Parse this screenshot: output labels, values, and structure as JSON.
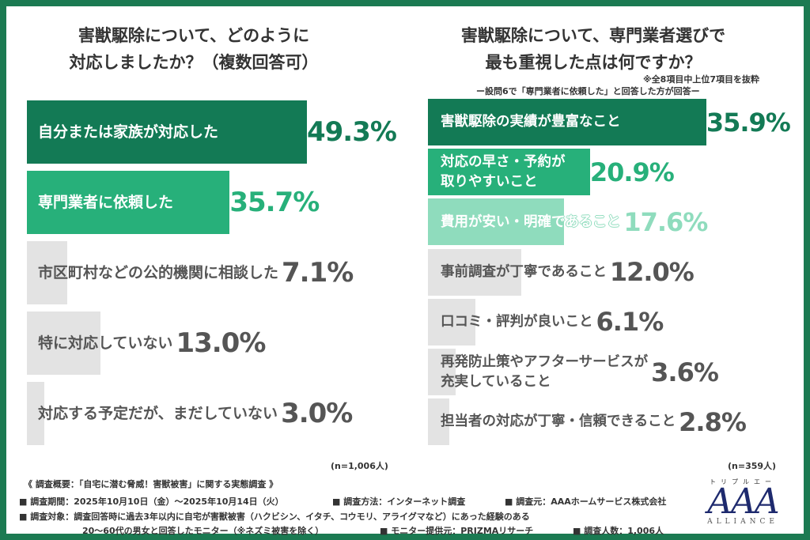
{
  "chart_data": [
    {
      "type": "bar",
      "orientation": "horizontal",
      "title": "害獣駆除について、どのように\n対応しましたか？（複数回答可）",
      "title_lines": [
        "害獣駆除について、どのように",
        "対応しましたか？（複数回答可）"
      ],
      "categories": [
        "自分または家族が対応した",
        "専門業者に依頼した",
        "市区町村などの公的機関に相談した",
        "特に対応していない",
        "対応する予定だが、まだしていない"
      ],
      "values": [
        49.3,
        35.7,
        7.1,
        13.0,
        3.0
      ],
      "value_labels": [
        "49.3%",
        "35.7%",
        "7.1%",
        "13.0%",
        "3.0%"
      ],
      "colors": [
        "#137a55",
        "#27b07a",
        "#e3e3e3",
        "#e3e3e3",
        "#e3e3e3"
      ],
      "value_colors": [
        "#137a55",
        "#27b07a",
        "#555555",
        "#555555",
        "#555555"
      ],
      "sample": "(n=1,006人)"
    },
    {
      "type": "bar",
      "orientation": "horizontal",
      "title_lines": [
        "害獣駆除について、専門業者選びで",
        "最も重視した点は何ですか？"
      ],
      "note": "※全8項目中上位7項目を抜粋",
      "subtitle": "ー設問6で「専門業者に依頼した」と回答した方が回答ー",
      "categories": [
        "害獣駆除の実績が豊富なこと",
        "対応の早さ・予約が\n取りやすいこと",
        "費用が安い・明確であること",
        "事前調査が丁寧であること",
        "口コミ・評判が良いこと",
        "再発防止策やアフターサービスが\n充実していること",
        "担当者の対応が丁寧・信頼できること"
      ],
      "values": [
        35.9,
        20.9,
        17.6,
        12.0,
        6.1,
        3.6,
        2.8
      ],
      "value_labels": [
        "35.9%",
        "20.9%",
        "17.6%",
        "12.0%",
        "6.1%",
        "3.6%",
        "2.8%"
      ],
      "colors": [
        "#137a55",
        "#27b07a",
        "#8fdcbd",
        "#e3e3e3",
        "#e3e3e3",
        "#e3e3e3",
        "#e3e3e3"
      ],
      "value_colors": [
        "#137a55",
        "#27b07a",
        "#8fdcbd",
        "#555555",
        "#555555",
        "#555555",
        "#555555"
      ],
      "sample": "(n=359人)"
    }
  ],
  "footer": {
    "overview": "《 調査概要：「自宅に潜む脅威！害獣被害」に関する実態調査 》",
    "period": "■ 調査期間：2025年10月10日（金）～2025年10月14日（火）",
    "method": "■ 調査方法：インターネット調査",
    "org": "■ 調査元：AAAホームサービス株式会社",
    "target": "■ 調査対象：調査回答時に過去3年以内に自宅が害獣被害（ハクビシン、イタチ、コウモリ、アライグマなど）にあった経験のある",
    "target2": "20～60代の男女と回答したモニター（※ネズミ被害を除く）",
    "provider": "■ モニター提供元：PRIZMAリサーチ",
    "count": "■ 調査人数：1,006人"
  },
  "logo": {
    "kana": "トリプルエー",
    "main": "AAA",
    "sub": "ALLIANCE"
  }
}
